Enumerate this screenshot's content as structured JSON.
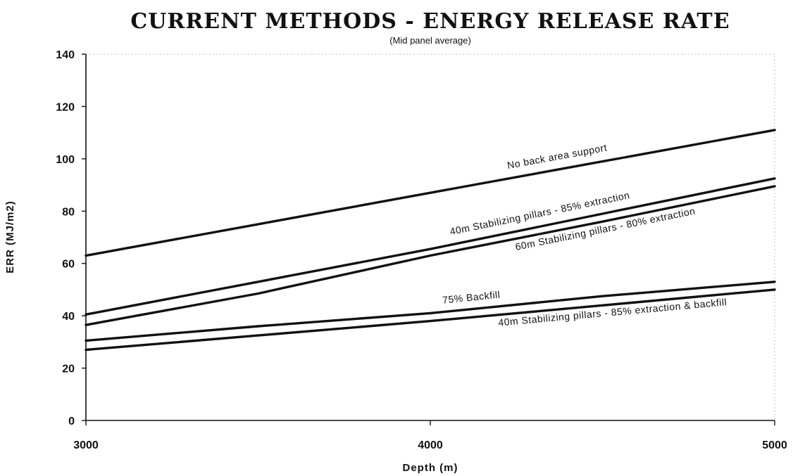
{
  "chart_data": {
    "type": "line",
    "title": "CURRENT METHODS - ENERGY RELEASE RATE",
    "subtitle": "(Mid panel average)",
    "xlabel": "Depth (m)",
    "ylabel": "ERR (MJ/m2)",
    "xlim": [
      3000,
      5000
    ],
    "ylim": [
      0,
      140
    ],
    "xticks": [
      3000,
      4000,
      5000
    ],
    "yticks": [
      0,
      20,
      40,
      60,
      80,
      100,
      120,
      140
    ],
    "grid": false,
    "legend": "none",
    "series": [
      {
        "name": "No back area support",
        "x": [
          3000,
          3500,
          4000,
          4500,
          5000
        ],
        "y": [
          63,
          75,
          87,
          99,
          111
        ]
      },
      {
        "name": "40m Stabilizing pillars - 85% extraction",
        "x": [
          3000,
          3500,
          4000,
          4500,
          5000
        ],
        "y": [
          40.5,
          53,
          65.5,
          79,
          92.5
        ]
      },
      {
        "name": "60m Stabilizing pillars - 80% extraction",
        "x": [
          3000,
          3500,
          4000,
          4500,
          5000
        ],
        "y": [
          36.5,
          48.5,
          63,
          76,
          89.5
        ]
      },
      {
        "name": "75% Backfill",
        "x": [
          3000,
          3500,
          4000,
          4500,
          5000
        ],
        "y": [
          30.5,
          36,
          41,
          47.5,
          53
        ]
      },
      {
        "name": "40m Stabilizing pillars - 85% extraction & backfill",
        "x": [
          3000,
          3500,
          4000,
          4500,
          5000
        ],
        "y": [
          27,
          32.5,
          38,
          44,
          50
        ]
      }
    ]
  }
}
